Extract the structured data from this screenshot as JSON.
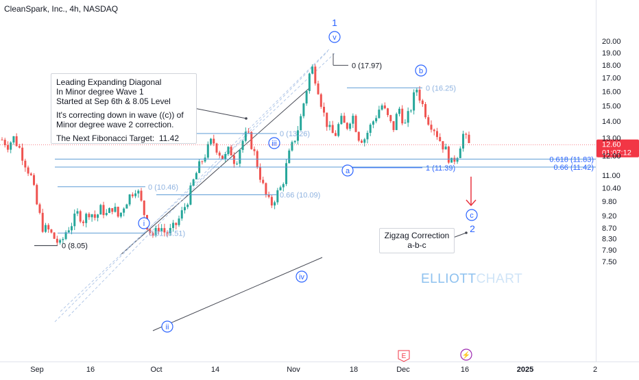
{
  "header": {
    "title": "CleanSpark, Inc., 4h, NASDAQ"
  },
  "colors": {
    "bull": "#26a69a",
    "bear": "#ef5350",
    "wave": "#2962ff",
    "fib": "#5b9bd5",
    "fib_text": "#8fb3e0",
    "trend": "#434651",
    "channel": "#b2c8e8",
    "arrow": "#e8333f",
    "price_tag": "#f23645",
    "earnings": "#f23645",
    "dividend": "#9c27b0"
  },
  "annotation": {
    "lines": [
      "Leading Expanding Diagonal",
      "In Minor degree Wave 1",
      "Started at Sep 6th & 8.05 Level",
      "",
      "It's correcting down in wave ((c)) of",
      "Minor degree wave 2 correction.",
      "",
      "The Next Fibonacci Target:  11.42"
    ]
  },
  "zigzag_note": {
    "line1": "Zigzag Correction",
    "line2": "a-b-c"
  },
  "watermark": {
    "part1": "ELLIOTT",
    "part2": "CHART"
  },
  "price_tag": {
    "price": "12.60",
    "countdown": "01:07:12"
  },
  "events": {
    "earnings_label": "E",
    "dividend_label": "⚡"
  },
  "chart_data": {
    "type": "candlestick",
    "title": "CleanSpark, Inc., 4h, NASDAQ",
    "y_axis": {
      "scale": "log",
      "ticks": [
        20.0,
        19.0,
        18.0,
        17.0,
        16.0,
        15.0,
        14.0,
        13.0,
        12.0,
        11.0,
        10.4,
        9.8,
        9.2,
        8.7,
        8.3,
        7.9,
        7.5
      ],
      "range": [
        7.4,
        20.6
      ]
    },
    "x_axis": {
      "ticks": [
        "Sep",
        "16",
        "Oct",
        "14",
        "Nov",
        "18",
        "Dec",
        "16",
        "2025",
        "2"
      ]
    },
    "last_price": 12.6,
    "price_path": [
      12.9,
      12.6,
      13.0,
      12.4,
      11.6,
      10.9,
      9.6,
      8.7,
      8.6,
      8.3,
      8.05,
      8.6,
      8.9,
      9.3,
      9.0,
      9.4,
      9.1,
      9.5,
      9.2,
      9.6,
      9.1,
      9.7,
      10.1,
      10.46,
      9.6,
      8.7,
      8.4,
      8.8,
      8.5,
      8.6,
      8.9,
      9.4,
      10.0,
      10.9,
      11.6,
      12.2,
      12.9,
      12.3,
      11.8,
      12.4,
      11.6,
      12.7,
      13.26,
      12.4,
      11.2,
      10.2,
      9.6,
      10.09,
      10.5,
      11.9,
      12.8,
      13.9,
      15.8,
      17.97,
      16.5,
      14.6,
      13.5,
      13.1,
      14.1,
      13.6,
      14.5,
      13.1,
      12.9,
      13.6,
      14.3,
      15.1,
      14.3,
      13.5,
      14.9,
      13.7,
      14.8,
      16.25,
      15.1,
      14.1,
      13.6,
      12.9,
      12.3,
      11.6,
      12.1,
      13.2,
      12.6
    ],
    "fibonacci_levels": [
      {
        "label": "0 (8.05)",
        "price": 8.05
      },
      {
        "label": "0 (10.46)",
        "price": 10.46
      },
      {
        "label": "0.81 (8.51)",
        "price": 8.51
      },
      {
        "label": "0 (13.26)",
        "price": 13.26
      },
      {
        "label": "0.66 (10.09)",
        "price": 10.09
      },
      {
        "label": "0 (17.97)",
        "price": 17.97
      },
      {
        "label": "0 (16.25)",
        "price": 16.25
      },
      {
        "label": "1 (11.39)",
        "price": 11.39
      },
      {
        "label": "0.618 (11.83)",
        "price": 11.83
      },
      {
        "label": "0.66 (11.42)",
        "price": 11.42
      }
    ],
    "wave_labels": [
      "i",
      "ii",
      "iii",
      "iv",
      "v",
      "1",
      "a",
      "b",
      "c",
      "2"
    ]
  }
}
